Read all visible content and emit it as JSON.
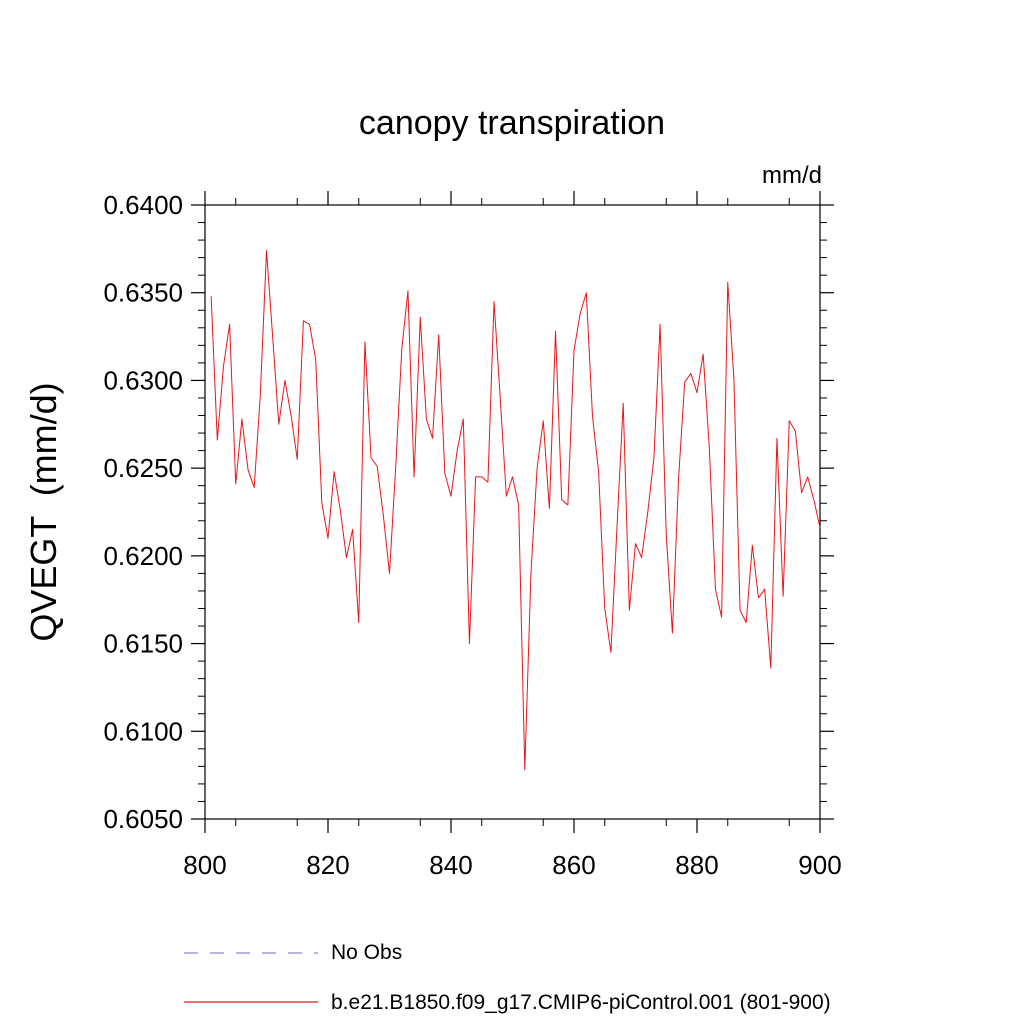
{
  "chart_data": {
    "type": "line",
    "title": "canopy transpiration",
    "units": "mm/d",
    "ylabel": "QVEGT  (mm/d)",
    "xlabel": "",
    "xlim": [
      800,
      900
    ],
    "ylim": [
      0.605,
      0.64
    ],
    "x_ticks": [
      "800",
      "820",
      "840",
      "860",
      "880",
      "900"
    ],
    "y_ticks": [
      "0.6050",
      "0.6100",
      "0.6150",
      "0.6200",
      "0.6250",
      "0.6300",
      "0.6350",
      "0.6400"
    ],
    "grid": false,
    "legend_position": "bottom",
    "legend": [
      {
        "label": "No Obs",
        "style": "dashed",
        "color": "#8a8ad0"
      },
      {
        "label": "b.e21.B1850.f09_g17.CMIP6-piControl.001 (801-900)",
        "style": "solid",
        "color": "#e8161b"
      }
    ],
    "series": [
      {
        "name": "b.e21.B1850.f09_g17.CMIP6-piControl.001 (801-900)",
        "color": "#e8161b",
        "x": [
          801,
          802,
          803,
          804,
          805,
          806,
          807,
          808,
          809,
          810,
          811,
          812,
          813,
          814,
          815,
          816,
          817,
          818,
          819,
          820,
          821,
          822,
          823,
          824,
          825,
          826,
          827,
          828,
          829,
          830,
          831,
          832,
          833,
          834,
          835,
          836,
          837,
          838,
          839,
          840,
          841,
          842,
          843,
          844,
          845,
          846,
          847,
          848,
          849,
          850,
          851,
          852,
          853,
          854,
          855,
          856,
          857,
          858,
          859,
          860,
          861,
          862,
          863,
          864,
          865,
          866,
          867,
          868,
          869,
          870,
          871,
          872,
          873,
          874,
          875,
          876,
          877,
          878,
          879,
          880,
          881,
          882,
          883,
          884,
          885,
          886,
          887,
          888,
          889,
          890,
          891,
          892,
          893,
          894,
          895,
          896,
          897,
          898,
          899,
          900
        ],
        "values": [
          0.6348,
          0.6266,
          0.6308,
          0.6332,
          0.6241,
          0.6278,
          0.6249,
          0.6239,
          0.6292,
          0.6374,
          0.6325,
          0.6275,
          0.63,
          0.628,
          0.6255,
          0.6334,
          0.6332,
          0.6312,
          0.623,
          0.621,
          0.6248,
          0.6226,
          0.6199,
          0.6215,
          0.6162,
          0.6322,
          0.6256,
          0.6251,
          0.6223,
          0.619,
          0.625,
          0.6318,
          0.6351,
          0.6245,
          0.6336,
          0.6278,
          0.6267,
          0.6326,
          0.6247,
          0.6234,
          0.626,
          0.6278,
          0.615,
          0.6245,
          0.6245,
          0.6242,
          0.6345,
          0.629,
          0.6234,
          0.6245,
          0.6229,
          0.6078,
          0.619,
          0.625,
          0.6277,
          0.6227,
          0.6328,
          0.6232,
          0.6229,
          0.6317,
          0.6338,
          0.635,
          0.628,
          0.6248,
          0.617,
          0.6145,
          0.6217,
          0.6287,
          0.6169,
          0.6207,
          0.6199,
          0.6225,
          0.6256,
          0.6332,
          0.6212,
          0.6156,
          0.6244,
          0.6299,
          0.6304,
          0.6293,
          0.6315,
          0.6262,
          0.6181,
          0.6165,
          0.6356,
          0.6301,
          0.6169,
          0.6162,
          0.6206,
          0.6176,
          0.6181,
          0.6136,
          0.6267,
          0.6177,
          0.6277,
          0.6271,
          0.6236,
          0.6245,
          0.6232,
          0.6216
        ]
      }
    ]
  }
}
